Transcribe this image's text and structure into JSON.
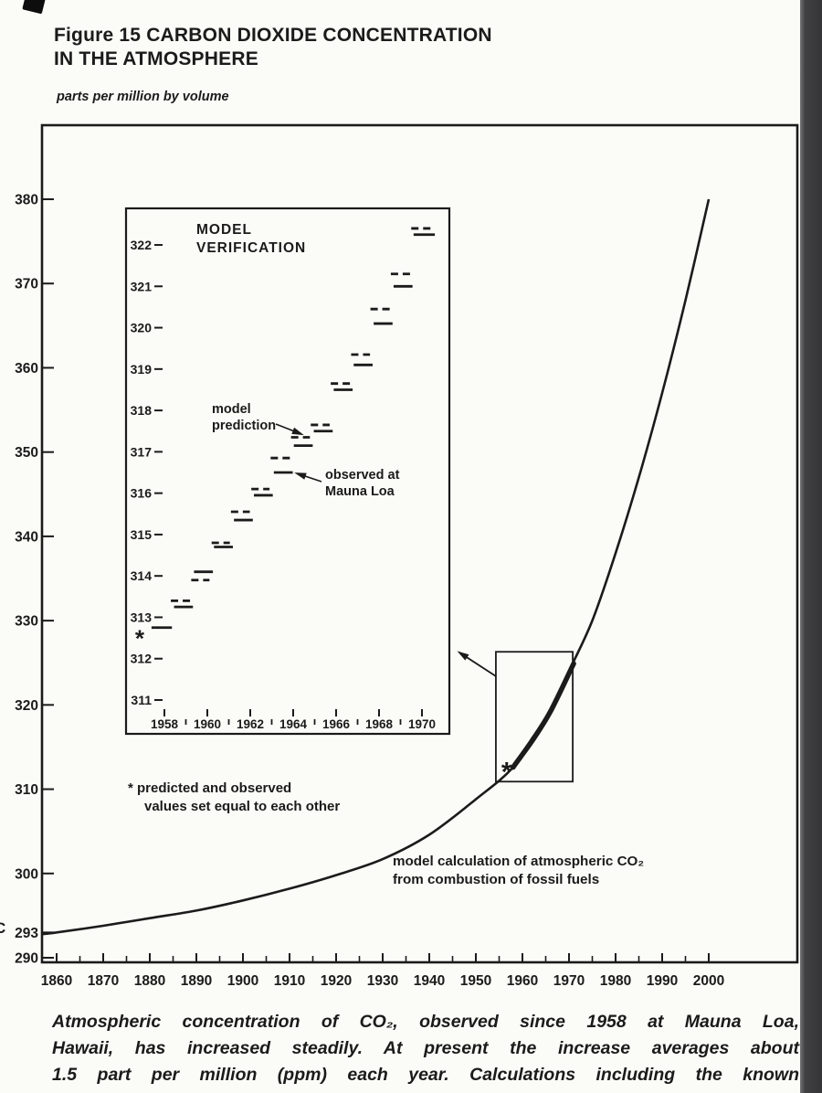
{
  "page": {
    "title_line1": "Figure 15 CARBON DIOXIDE CONCENTRATION",
    "title_line2": "IN THE ATMOSPHERE",
    "units_label": "parts per million by volume",
    "caption_lines": [
      "Atmospheric concentration of CO₂, observed since 1958 at Mauna Loa,",
      "Hawaii, has increased steadily. At present the increase averages about",
      "1.5 part per million (ppm) each year. Calculations including the known"
    ],
    "edge_mark": "C",
    "colors": {
      "ink": "#1b1b1b",
      "paper": "#fbfbf7",
      "scan_band": "#404042"
    }
  },
  "chart_data": [
    {
      "id": "main",
      "type": "line",
      "title": "Figure 15 CARBON DIOXIDE CONCENTRATION IN THE ATMOSPHERE",
      "xlabel": "",
      "ylabel": "parts per million by volume",
      "xlim": [
        1857,
        2020
      ],
      "ylim": [
        289.5,
        388.8
      ],
      "grid": false,
      "legend_position": "none",
      "x_ticks": [
        1860,
        1870,
        1880,
        1890,
        1900,
        1910,
        1920,
        1930,
        1940,
        1950,
        1960,
        1970,
        1980,
        1990,
        2000
      ],
      "y_ticks": [
        290,
        293,
        300,
        310,
        320,
        330,
        340,
        350,
        360,
        370,
        380
      ],
      "series": [
        {
          "name": "model calculation of atmospheric CO₂ from combustion of fossil fuels",
          "style": "solid",
          "points": [
            [
              1857,
              292.8
            ],
            [
              1860,
              293
            ],
            [
              1870,
              293.8
            ],
            [
              1880,
              294.7
            ],
            [
              1890,
              295.6
            ],
            [
              1900,
              296.8
            ],
            [
              1910,
              298.2
            ],
            [
              1920,
              299.8
            ],
            [
              1930,
              301.7
            ],
            [
              1940,
              304.6
            ],
            [
              1950,
              308.8
            ],
            [
              1958,
              312.6
            ],
            [
              1965,
              318
            ],
            [
              1970,
              324
            ],
            [
              1975,
              330
            ],
            [
              1980,
              338
            ],
            [
              1985,
              347
            ],
            [
              1990,
              357
            ],
            [
              1995,
              368
            ],
            [
              2000,
              380
            ]
          ]
        },
        {
          "name": "observed at Mauna Loa (heavy segment 1958–1971)",
          "style": "thick",
          "points": [
            [
              1958,
              312.6
            ],
            [
              1962,
              315.7
            ],
            [
              1966,
              319.2
            ],
            [
              1971,
              324.9
            ]
          ]
        }
      ],
      "star_marker": {
        "x": 1956.6,
        "y": 312.7,
        "symbol": "*"
      },
      "zoom_rect": {
        "x1": 1954.3,
        "x2": 1970.8,
        "y1": 310.9,
        "y2": 326.3
      },
      "annotation": {
        "lines": [
          "model calculation of atmospheric CO₂",
          "from combustion of fossil fuels"
        ]
      }
    },
    {
      "id": "inset",
      "type": "line",
      "title_lines": [
        "MODEL",
        "VERIFICATION"
      ],
      "xlim": [
        1956.2,
        1971.3
      ],
      "ylim": [
        310.2,
        322.9
      ],
      "grid": false,
      "x_ticks": [
        1958,
        1960,
        1962,
        1964,
        1966,
        1968,
        1970
      ],
      "x_minor_ticks": [
        1959,
        1961,
        1963,
        1965,
        1967,
        1969
      ],
      "y_ticks": [
        311,
        312,
        313,
        314,
        315,
        316,
        317,
        318,
        319,
        320,
        321,
        322
      ],
      "series": [
        {
          "name": "observed at Mauna Loa",
          "style": "solid",
          "steps": [
            [
              1958.45,
              1959.33,
              313.25
            ],
            [
              1959.38,
              1960.26,
              314.1
            ],
            [
              1960.31,
              1961.19,
              314.7
            ],
            [
              1961.24,
              1962.12,
              315.35
            ],
            [
              1962.17,
              1963.05,
              315.95
            ],
            [
              1963.1,
              1963.98,
              316.5
            ],
            [
              1964.03,
              1964.91,
              317.15
            ],
            [
              1964.96,
              1965.84,
              317.5
            ],
            [
              1965.89,
              1966.77,
              318.5
            ],
            [
              1966.82,
              1967.7,
              319.1
            ],
            [
              1967.75,
              1968.63,
              320.1
            ],
            [
              1968.68,
              1969.56,
              321.0
            ],
            [
              1969.61,
              1970.6,
              322.25
            ]
          ]
        },
        {
          "name": "model prediction",
          "style": "dashed",
          "steps": [
            [
              1958.3,
              1959.2,
              313.4
            ],
            [
              1959.25,
              1960.1,
              313.9
            ],
            [
              1960.2,
              1961.05,
              314.8
            ],
            [
              1961.1,
              1961.98,
              315.55
            ],
            [
              1962.05,
              1962.9,
              316.1
            ],
            [
              1962.95,
              1963.85,
              316.85
            ],
            [
              1963.9,
              1964.78,
              317.35
            ],
            [
              1964.82,
              1965.7,
              317.65
            ],
            [
              1965.75,
              1966.65,
              318.65
            ],
            [
              1966.7,
              1967.58,
              319.35
            ],
            [
              1967.6,
              1968.5,
              320.45
            ],
            [
              1968.55,
              1969.45,
              321.3
            ],
            [
              1969.5,
              1970.5,
              322.4
            ]
          ]
        }
      ],
      "star_point": {
        "x": 1956.85,
        "y": 312.6,
        "symbol": "*"
      },
      "star_segment": [
        1957.4,
        1958.35,
        312.75
      ],
      "labels": {
        "model_prediction_lines": [
          "model",
          "prediction"
        ],
        "observed_lines": [
          "observed at",
          "Mauna Loa"
        ]
      },
      "footnote_lines": [
        "* predicted and observed",
        "values set equal to each other"
      ]
    }
  ]
}
